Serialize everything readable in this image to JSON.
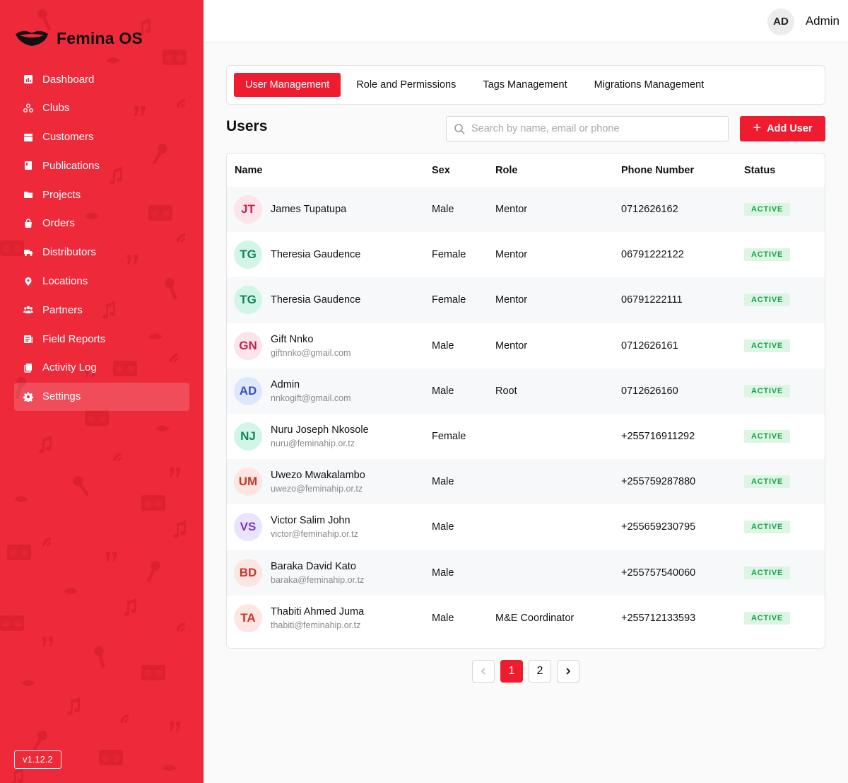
{
  "brand": {
    "name": "Femina OS",
    "accent": "#ee2a3a"
  },
  "sidebar": {
    "items": [
      {
        "label": "Dashboard",
        "icon": "chart-icon"
      },
      {
        "label": "Clubs",
        "icon": "group-icon"
      },
      {
        "label": "Customers",
        "icon": "drawer-icon"
      },
      {
        "label": "Publications",
        "icon": "book-icon"
      },
      {
        "label": "Projects",
        "icon": "folder-icon"
      },
      {
        "label": "Orders",
        "icon": "bag-icon"
      },
      {
        "label": "Distributors",
        "icon": "truck-icon"
      },
      {
        "label": "Locations",
        "icon": "pin-icon"
      },
      {
        "label": "Partners",
        "icon": "users-icon"
      },
      {
        "label": "Field Reports",
        "icon": "report-icon"
      },
      {
        "label": "Activity Log",
        "icon": "copy-icon"
      },
      {
        "label": "Settings",
        "icon": "gear-icon",
        "active": true
      }
    ],
    "version": "v1.12.2"
  },
  "header": {
    "avatar_initials": "AD",
    "user_name": "Admin"
  },
  "tabs": [
    {
      "label": "User Management",
      "active": true
    },
    {
      "label": "Role and Permissions"
    },
    {
      "label": "Tags Management"
    },
    {
      "label": "Migrations Management"
    }
  ],
  "users_section": {
    "title": "Users",
    "search_placeholder": "Search by name, email or phone",
    "add_button": "Add User"
  },
  "table": {
    "headers": {
      "name": "Name",
      "sex": "Sex",
      "role": "Role",
      "phone": "Phone Number",
      "status": "Status"
    },
    "rows": [
      {
        "initials": "JT",
        "name": "James Tupatupa",
        "email": "",
        "sex": "Male",
        "role": "Mentor",
        "phone": "0712626162",
        "status": "ACTIVE",
        "avatar_bg": "#fde4ea",
        "avatar_fg": "#be2550"
      },
      {
        "initials": "TG",
        "name": "Theresia Gaudence",
        "email": "",
        "sex": "Female",
        "role": "Mentor",
        "phone": "06791222122",
        "status": "ACTIVE",
        "avatar_bg": "#d3f5e8",
        "avatar_fg": "#11855e"
      },
      {
        "initials": "TG",
        "name": "Theresia Gaudence",
        "email": "",
        "sex": "Female",
        "role": "Mentor",
        "phone": "06791222111",
        "status": "ACTIVE",
        "avatar_bg": "#d3f5e8",
        "avatar_fg": "#11855e"
      },
      {
        "initials": "GN",
        "name": "Gift Nnko",
        "email": "giftnnko@gmail.com",
        "sex": "Male",
        "role": "Mentor",
        "phone": "0712626161",
        "status": "ACTIVE",
        "avatar_bg": "#fde4ea",
        "avatar_fg": "#be2550"
      },
      {
        "initials": "AD",
        "name": "Admin",
        "email": "nnkogift@gmail.com",
        "sex": "Male",
        "role": "Root",
        "phone": "0712626160",
        "status": "ACTIVE",
        "avatar_bg": "#dfe7fb",
        "avatar_fg": "#3352c8"
      },
      {
        "initials": "NJ",
        "name": "Nuru Joseph Nkosole",
        "email": "nuru@feminahip.or.tz",
        "sex": "Female",
        "role": "",
        "phone": "+255716911292",
        "status": "ACTIVE",
        "avatar_bg": "#d3f5e8",
        "avatar_fg": "#11855e"
      },
      {
        "initials": "UM",
        "name": "Uwezo Mwakalambo",
        "email": "uwezo@feminahip.or.tz",
        "sex": "Male",
        "role": "",
        "phone": "+255759287880",
        "status": "ACTIVE",
        "avatar_bg": "#fde5e2",
        "avatar_fg": "#c7362a"
      },
      {
        "initials": "VS",
        "name": "Victor Salim John",
        "email": "victor@feminahip.or.tz",
        "sex": "Male",
        "role": "",
        "phone": "+255659230795",
        "status": "ACTIVE",
        "avatar_bg": "#ebe2fb",
        "avatar_fg": "#7a3bd0"
      },
      {
        "initials": "BD",
        "name": "Baraka David Kato",
        "email": "baraka@feminahip.or.tz",
        "sex": "Male",
        "role": "",
        "phone": "+255757540060",
        "status": "ACTIVE",
        "avatar_bg": "#fde5e2",
        "avatar_fg": "#c7362a"
      },
      {
        "initials": "TA",
        "name": "Thabiti Ahmed Juma",
        "email": "thabiti@feminahip.or.tz",
        "sex": "Male",
        "role": "M&E Coordinator",
        "phone": "+255712133593",
        "status": "ACTIVE",
        "avatar_bg": "#fde5e2",
        "avatar_fg": "#c7362a"
      }
    ]
  },
  "pagination": {
    "prev_icon": "chevron-left-icon",
    "pages": [
      "1",
      "2"
    ],
    "current": "1",
    "next_icon": "chevron-right-icon"
  }
}
